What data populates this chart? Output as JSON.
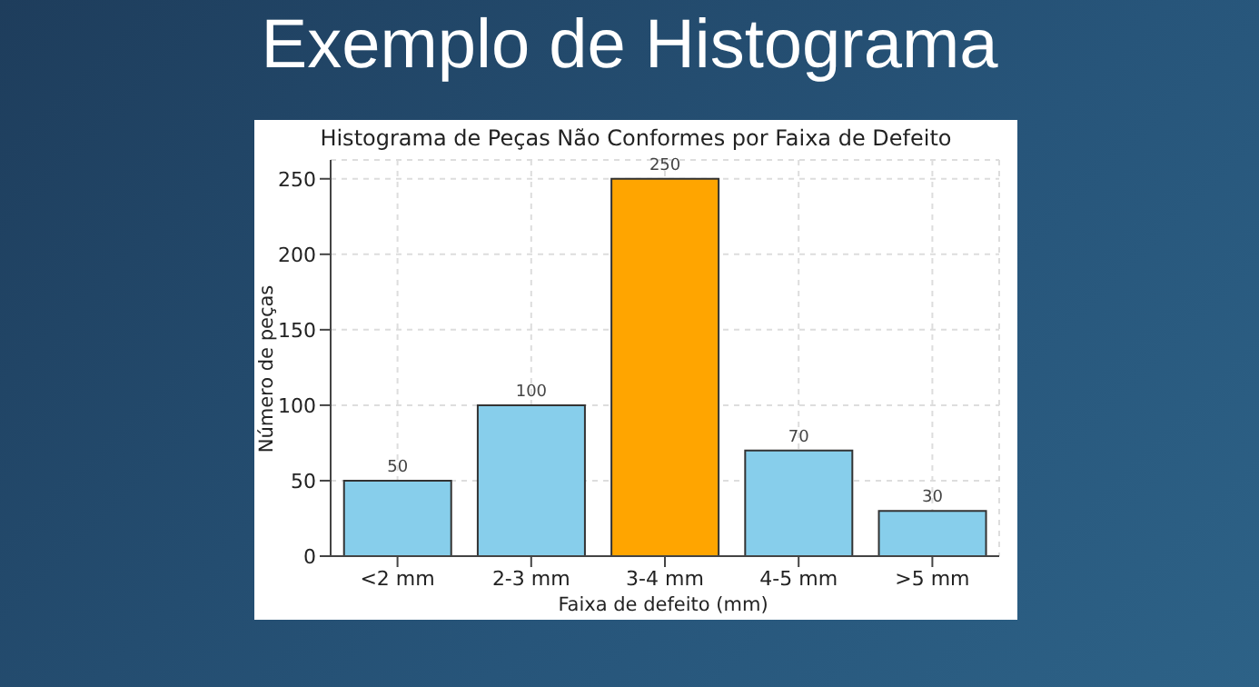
{
  "chart_data": {
    "type": "bar",
    "title": "Exemplo de Histograma",
    "subtitle": "Histograma de Peças Não Conformes por Faixa de Defeito",
    "xlabel": "Faixa de defeito (mm)",
    "ylabel": "Número de peças",
    "categories": [
      "<2 mm",
      "2-3 mm",
      "3-4 mm",
      "4-5 mm",
      ">5 mm"
    ],
    "values": [
      50,
      100,
      250,
      70,
      30
    ],
    "colors": [
      "#87ceeb",
      "#87ceeb",
      "#ffa500",
      "#87ceeb",
      "#87ceeb"
    ],
    "ylim": [
      0,
      262.5
    ],
    "yticks": [
      0,
      50,
      100,
      150,
      200,
      250
    ],
    "grid": true,
    "data_labels": true
  }
}
